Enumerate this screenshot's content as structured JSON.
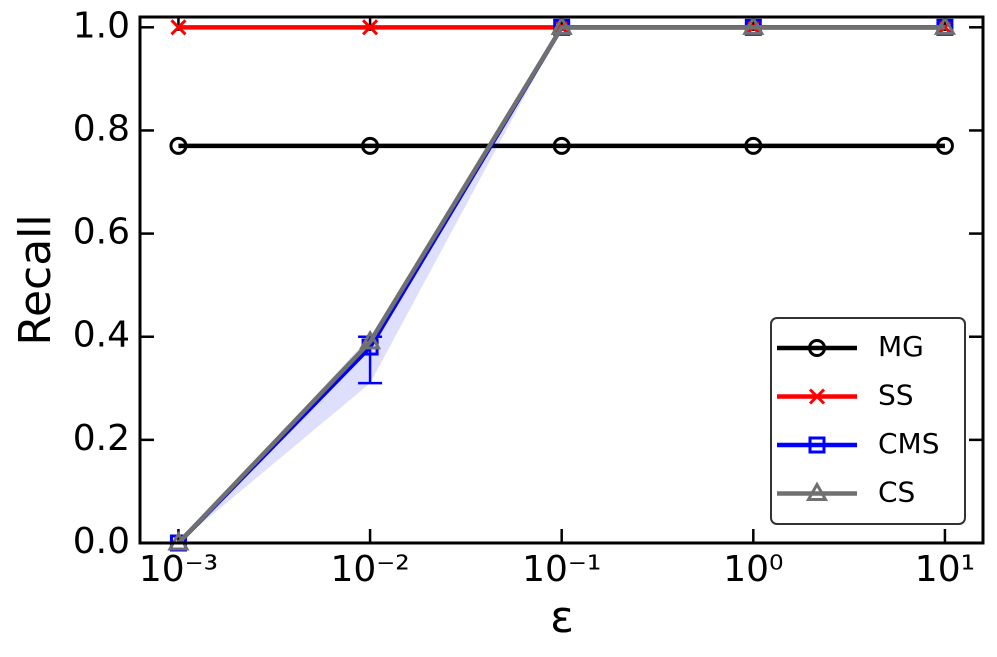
{
  "chart_data": {
    "type": "line",
    "xlabel": "ε",
    "ylabel": "Recall",
    "x": [
      0.001,
      0.01,
      0.1,
      1,
      10
    ],
    "xscale": "log",
    "xlim": [
      0.00063,
      15.8
    ],
    "xticks": [
      {
        "value": 0.001,
        "label": "10⁻³"
      },
      {
        "value": 0.01,
        "label": "10⁻²"
      },
      {
        "value": 0.1,
        "label": "10⁻¹"
      },
      {
        "value": 1,
        "label": "10⁰"
      },
      {
        "value": 10,
        "label": "10¹"
      }
    ],
    "ylim": [
      0,
      1.02
    ],
    "yticks": [
      {
        "value": 0,
        "label": "0.0"
      },
      0.2,
      0.4,
      0.6,
      0.8,
      {
        "value": 1,
        "label": "1.0"
      }
    ],
    "legend": "lower right",
    "series": [
      {
        "name": "MG",
        "color": "#000000",
        "marker": "circle",
        "values": [
          0.77,
          0.77,
          0.77,
          0.77,
          0.77
        ]
      },
      {
        "name": "SS",
        "color": "#ff0000",
        "marker": "x",
        "values": [
          1,
          1,
          1,
          1,
          1
        ]
      },
      {
        "name": "CMS",
        "color": "#0000ff",
        "marker": "square",
        "values": [
          0,
          0.38,
          1,
          1,
          1
        ],
        "lower": [
          0,
          0.31,
          1,
          1,
          1
        ],
        "upper": [
          0,
          0.4,
          1,
          1,
          1
        ]
      },
      {
        "name": "CS",
        "color": "#707070",
        "marker": "triangle",
        "values": [
          0,
          0.39,
          1,
          1,
          1
        ]
      }
    ]
  }
}
